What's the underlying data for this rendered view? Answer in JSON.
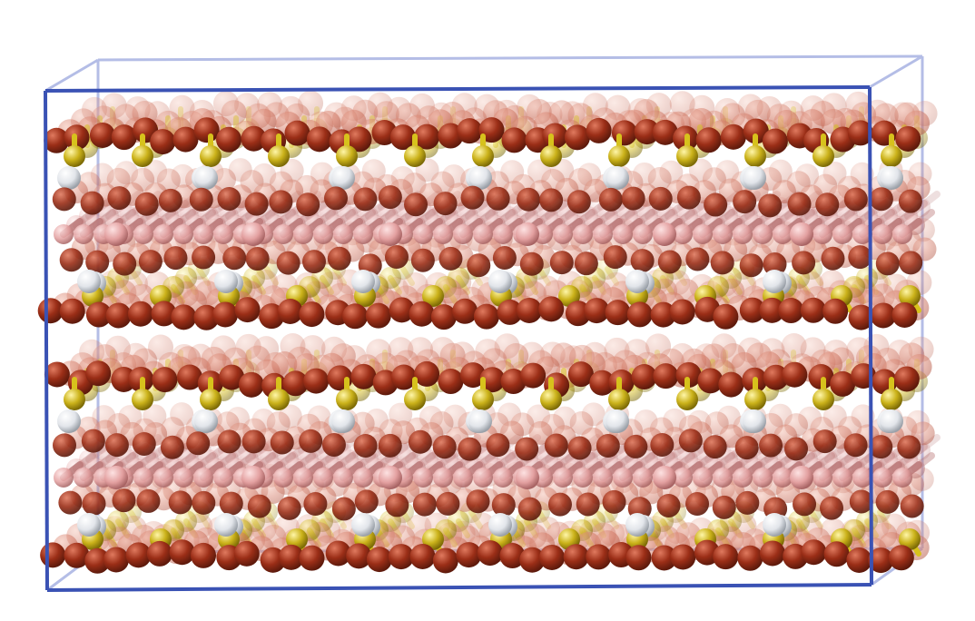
{
  "scene": {
    "description_free": true,
    "colors": {
      "background": "#ffffff",
      "box_front": "#3a52b4",
      "box_back": "#b4bde6",
      "oxygen": "#9b2e17",
      "oxygen_light": "#c9604a",
      "sulfur": "#d7c21c",
      "hydrogen": "#e8ebef",
      "boron": "#e8a6a6",
      "boron_shadow": "#b87474"
    },
    "layers": [
      {
        "name": "slab-top"
      },
      {
        "name": "slab-bottom"
      }
    ],
    "atom_types": [
      "oxygen-atom",
      "sulfur-atom",
      "hydrogen-atom",
      "boron-atom"
    ]
  }
}
